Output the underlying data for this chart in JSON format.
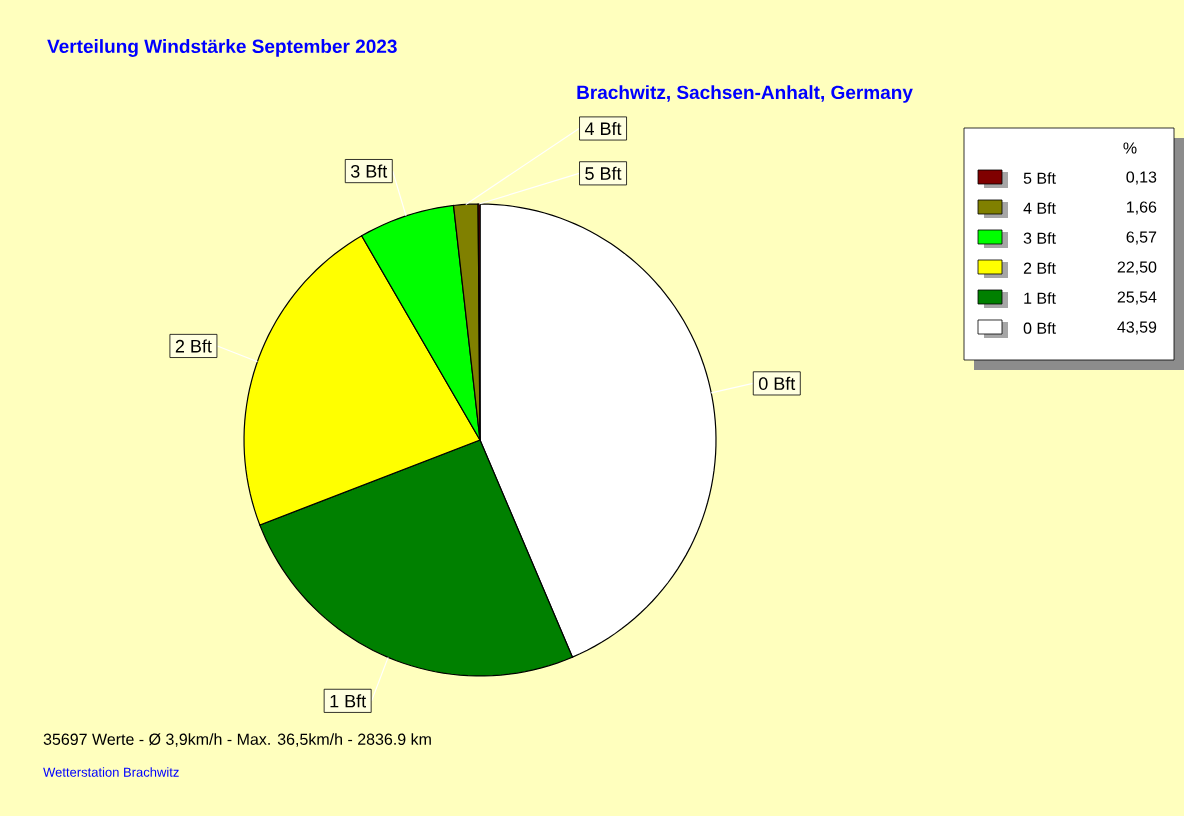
{
  "chart_data": {
    "type": "pie",
    "title": "Verteilung Windstärke September 2023",
    "subtitle": "Brachwitz, Sachsen-Anhalt, Germany",
    "categories": [
      "0 Bft",
      "1 Bft",
      "2 Bft",
      "3 Bft",
      "4 Bft",
      "5 Bft"
    ],
    "values": [
      43.59,
      25.54,
      22.5,
      6.57,
      1.66,
      0.13
    ],
    "value_labels": [
      "43,59",
      "25,54",
      "22,50",
      "6,57",
      "1,66",
      "0,13"
    ],
    "colors": [
      "#ffffff",
      "#008000",
      "#ffff00",
      "#00ff00",
      "#808000",
      "#800000"
    ],
    "legend": "top right",
    "legend_title": "%",
    "annotations": [
      "35697 Werte - Ø 3,9km/h - Max. 36,5km/h - 2836.9 km",
      "Wetterstation Brachwitz"
    ]
  }
}
